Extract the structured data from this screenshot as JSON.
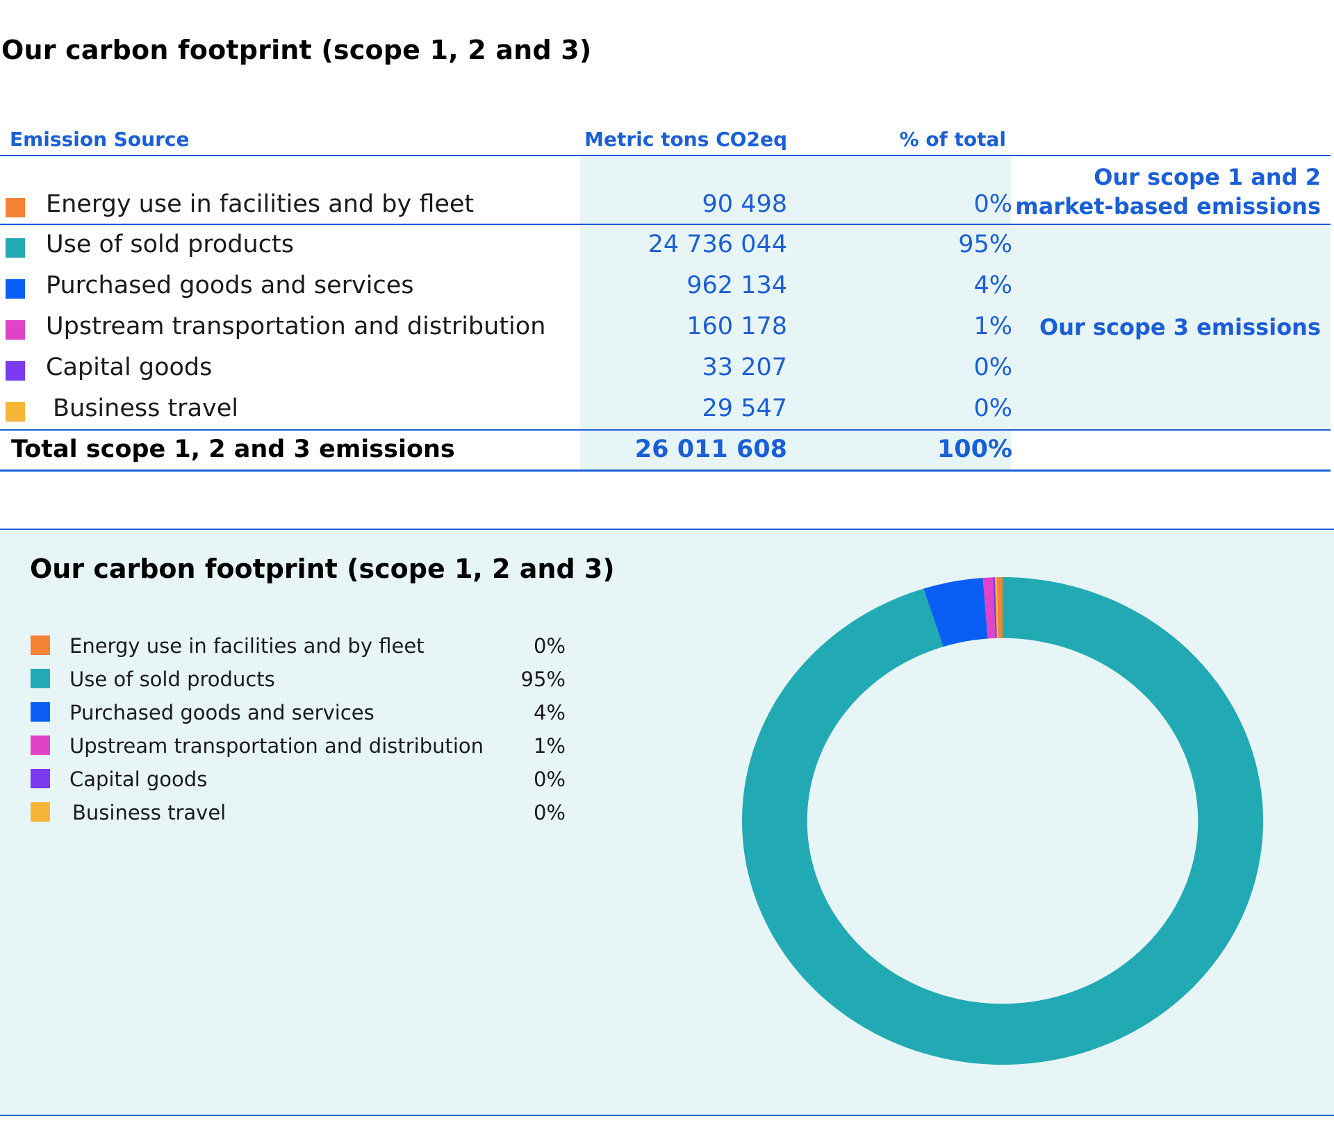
{
  "table": {
    "title": "Our carbon footprint (scope 1, 2 and 3)",
    "headers": {
      "source": "Emission Source",
      "metric": "Metric tons CO2eq",
      "pct": "% of total"
    },
    "rows": [
      {
        "label": "Energy use in facilities and by fleet",
        "value": "90 498",
        "pct": "0%",
        "color": "#f58235"
      },
      {
        "label": "Use of sold products",
        "value": "24 736 044",
        "pct": "95%",
        "color": "#22aab4"
      },
      {
        "label": "Purchased goods and services",
        "value": "962 134",
        "pct": "4%",
        "color": "#0b5ef5"
      },
      {
        "label": "Upstream transportation and distribution",
        "value": "160 178",
        "pct": "1%",
        "color": "#e042c8"
      },
      {
        "label": "Capital goods",
        "value": "33 207",
        "pct": "0%",
        "color": "#7b3af0"
      },
      {
        "label": "Business travel",
        "value": "29 547",
        "pct": "0%",
        "color": "#f7b538"
      }
    ],
    "total": {
      "label": "Total scope 1, 2 and 3 emissions",
      "value": "26 011 608",
      "pct": "100%"
    },
    "notes": {
      "scope12_line1": "Our scope 1 and 2",
      "scope12_line2": "market-based emissions",
      "scope3": "Our scope 3 emissions"
    }
  },
  "panel": {
    "title": "Our carbon footprint (scope 1, 2 and 3)"
  },
  "chart_data": {
    "type": "pie",
    "title": "Our carbon footprint (scope 1, 2 and 3)",
    "donut": true,
    "legend_position": "left",
    "categories": [
      "Use of sold products",
      "Purchased goods and services",
      "Upstream transportation and distribution",
      "Capital goods",
      "Business travel",
      "Energy use in facilities and by fleet"
    ],
    "values": [
      24736044,
      962134,
      160178,
      33207,
      29547,
      90498
    ],
    "colors": [
      "#22aab4",
      "#0b5ef5",
      "#e042c8",
      "#7b3af0",
      "#f7b538",
      "#f58235"
    ],
    "legend": [
      {
        "label": "Energy use in facilities and by fleet",
        "pct": "0%",
        "color": "#f58235"
      },
      {
        "label": "Use of sold products",
        "pct": "95%",
        "color": "#22aab4"
      },
      {
        "label": "Purchased goods and services",
        "pct": "4%",
        "color": "#0b5ef5"
      },
      {
        "label": "Upstream transportation and distribution",
        "pct": "1%",
        "color": "#e042c8"
      },
      {
        "label": "Capital goods",
        "pct": "0%",
        "color": "#7b3af0"
      },
      {
        "label": "Business travel",
        "pct": "0%",
        "color": "#f7b538"
      }
    ]
  }
}
